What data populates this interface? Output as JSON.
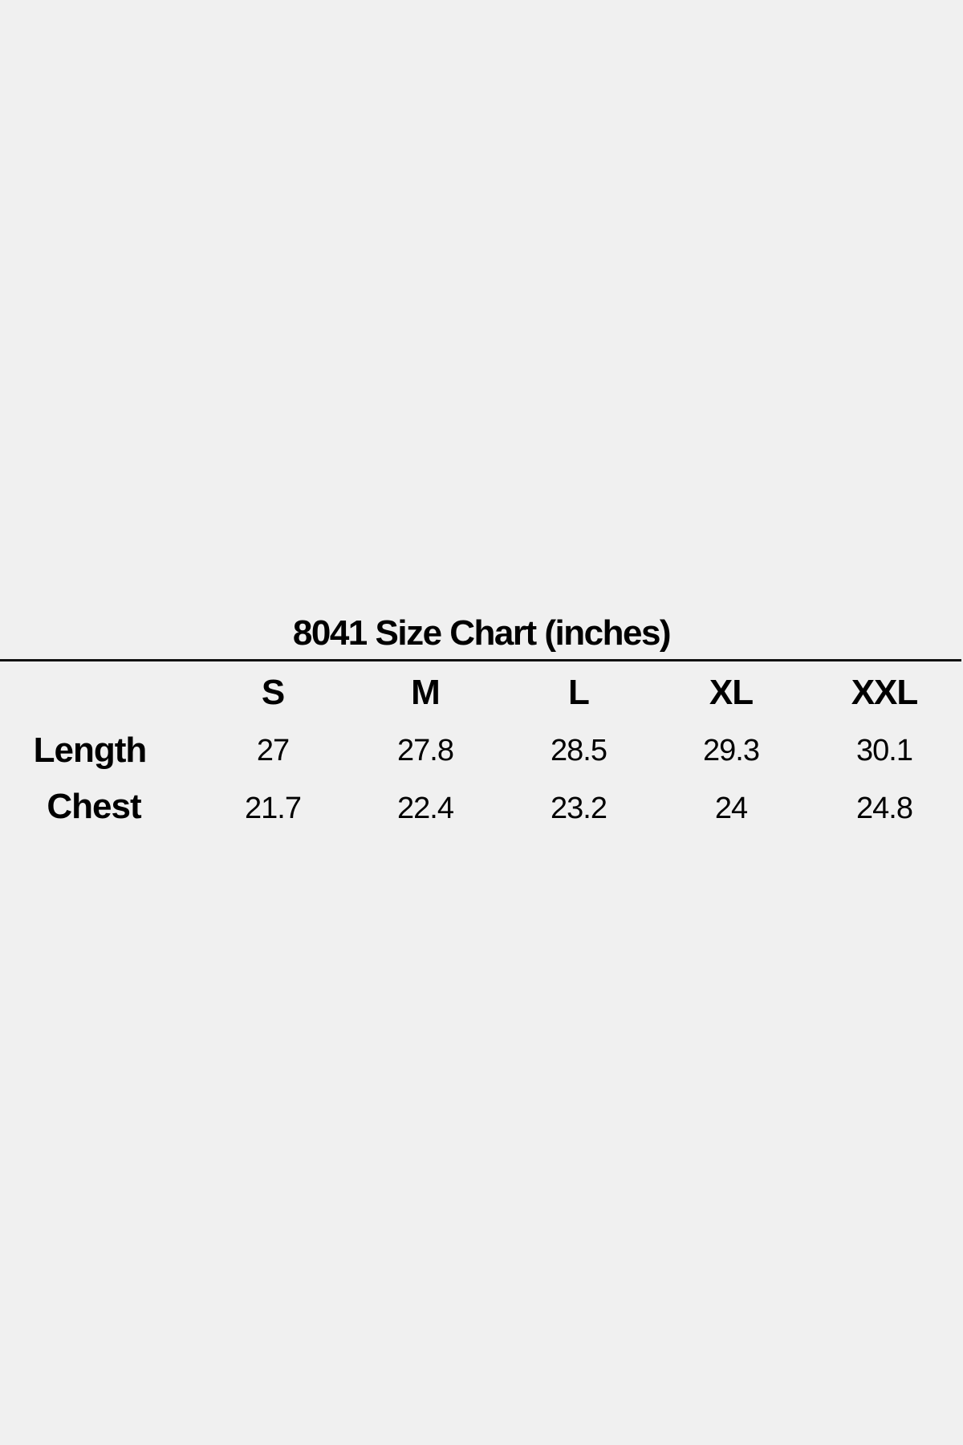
{
  "title": "8041 Size Chart (inches)",
  "table": {
    "columns": [
      "S",
      "M",
      "L",
      "XL",
      "XXL"
    ],
    "rows": [
      {
        "label": "Length",
        "values": [
          "27",
          "27.8",
          "28.5",
          "29.3",
          "30.1"
        ]
      },
      {
        "label": "Chest",
        "values": [
          "21.7",
          "22.4",
          "23.2",
          "24",
          "24.8"
        ]
      }
    ]
  }
}
